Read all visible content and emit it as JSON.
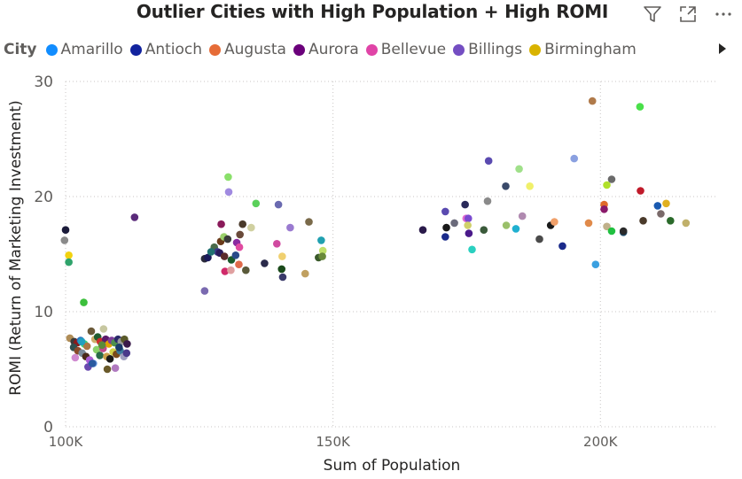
{
  "title": "Outlier Cities with High Population + High ROMI",
  "toolbar": {
    "filter_icon": "filter-icon",
    "focus_icon": "focus-mode-icon",
    "more_icon": "more-options-icon"
  },
  "legend": {
    "title": "City",
    "items": [
      {
        "label": "Amarillo",
        "color": "#118DFF"
      },
      {
        "label": "Antioch",
        "color": "#12239E"
      },
      {
        "label": "Augusta",
        "color": "#E66C37"
      },
      {
        "label": "Aurora",
        "color": "#6B007B"
      },
      {
        "label": "Bellevue",
        "color": "#E044A7"
      },
      {
        "label": "Billings",
        "color": "#744EC2"
      },
      {
        "label": "Birmingham",
        "color": "#D9B300"
      }
    ]
  },
  "chart_data": {
    "type": "scatter",
    "title": "Outlier Cities with High Population + High ROMI",
    "xlabel": "Sum of Population",
    "ylabel": "ROMI (Return of Marketing Investment)",
    "xlim": [
      100000,
      222000
    ],
    "ylim": [
      0,
      30
    ],
    "xticks": [
      {
        "value": 100000,
        "label": "100K"
      },
      {
        "value": 150000,
        "label": "150K"
      },
      {
        "value": 200000,
        "label": "200K"
      }
    ],
    "yticks": [
      {
        "value": 0,
        "label": "0"
      },
      {
        "value": 10,
        "label": "10"
      },
      {
        "value": 20,
        "label": "20"
      },
      {
        "value": 30,
        "label": "30"
      }
    ],
    "grid": "dotted",
    "legend_position": "top-left",
    "points": [
      {
        "x": 100000,
        "y": 17.1,
        "c": "#1b1b3a"
      },
      {
        "x": 99800,
        "y": 16.2,
        "c": "#8a8a8a"
      },
      {
        "x": 100600,
        "y": 14.9,
        "c": "#f2d20f"
      },
      {
        "x": 100600,
        "y": 14.3,
        "c": "#2fa36b"
      },
      {
        "x": 103400,
        "y": 10.8,
        "c": "#3cbf3c"
      },
      {
        "x": 112900,
        "y": 18.2,
        "c": "#5a2a7a"
      },
      {
        "x": 100800,
        "y": 7.7,
        "c": "#b08d57"
      },
      {
        "x": 101600,
        "y": 7.4,
        "c": "#3a3a3a"
      },
      {
        "x": 102200,
        "y": 7.3,
        "c": "#8b1a1a"
      },
      {
        "x": 102800,
        "y": 7.5,
        "c": "#2c6fbf"
      },
      {
        "x": 103500,
        "y": 7.2,
        "c": "#3cd07a"
      },
      {
        "x": 104000,
        "y": 7.0,
        "c": "#aa7744"
      },
      {
        "x": 104800,
        "y": 8.3,
        "c": "#6b5a3a"
      },
      {
        "x": 105500,
        "y": 7.6,
        "c": "#cfae6a"
      },
      {
        "x": 106000,
        "y": 7.8,
        "c": "#1f5c2f"
      },
      {
        "x": 106500,
        "y": 7.4,
        "c": "#d12b2b"
      },
      {
        "x": 107100,
        "y": 8.5,
        "c": "#c7c7a0"
      },
      {
        "x": 107500,
        "y": 7.6,
        "c": "#5a1a6a"
      },
      {
        "x": 108100,
        "y": 7.2,
        "c": "#e0a000"
      },
      {
        "x": 108600,
        "y": 7.5,
        "c": "#7d3d9a"
      },
      {
        "x": 109200,
        "y": 7.3,
        "c": "#4d8f4d"
      },
      {
        "x": 109800,
        "y": 7.6,
        "c": "#2a2a6a"
      },
      {
        "x": 110400,
        "y": 7.4,
        "c": "#9a9a9a"
      },
      {
        "x": 111000,
        "y": 7.6,
        "c": "#5a5a2a"
      },
      {
        "x": 111500,
        "y": 7.2,
        "c": "#3a1a4a"
      },
      {
        "x": 101500,
        "y": 6.9,
        "c": "#2f4f4f"
      },
      {
        "x": 102300,
        "y": 6.6,
        "c": "#8a4a2a"
      },
      {
        "x": 103100,
        "y": 6.4,
        "c": "#7a8a9a"
      },
      {
        "x": 103800,
        "y": 6.1,
        "c": "#4a2a1a"
      },
      {
        "x": 104500,
        "y": 5.8,
        "c": "#ab5cd6"
      },
      {
        "x": 105200,
        "y": 5.5,
        "c": "#6a9ae0"
      },
      {
        "x": 105800,
        "y": 6.7,
        "c": "#8ad06a"
      },
      {
        "x": 106400,
        "y": 6.2,
        "c": "#2a6a4a"
      },
      {
        "x": 107000,
        "y": 6.8,
        "c": "#c04a8a"
      },
      {
        "x": 107700,
        "y": 6.1,
        "c": "#caa04a"
      },
      {
        "x": 108300,
        "y": 5.9,
        "c": "#1a1a1a"
      },
      {
        "x": 108900,
        "y": 6.5,
        "c": "#d1d14a"
      },
      {
        "x": 109500,
        "y": 6.3,
        "c": "#7a4a1a"
      },
      {
        "x": 110200,
        "y": 6.6,
        "c": "#3a7a9a"
      },
      {
        "x": 110900,
        "y": 6.1,
        "c": "#a0a0c0"
      },
      {
        "x": 111400,
        "y": 6.4,
        "c": "#4a3a8a"
      },
      {
        "x": 101800,
        "y": 6.0,
        "c": "#d08ad0"
      },
      {
        "x": 104200,
        "y": 5.2,
        "c": "#6a4ab0"
      },
      {
        "x": 105000,
        "y": 5.5,
        "c": "#2a5aa0"
      },
      {
        "x": 107800,
        "y": 5.0,
        "c": "#6a5a2a"
      },
      {
        "x": 109300,
        "y": 5.1,
        "c": "#b07ac0"
      },
      {
        "x": 103000,
        "y": 7.4,
        "c": "#20a0c0"
      },
      {
        "x": 106800,
        "y": 7.1,
        "c": "#5a8a3a"
      },
      {
        "x": 110000,
        "y": 6.9,
        "c": "#1a3a6a"
      },
      {
        "x": 126000,
        "y": 14.6,
        "c": "#2a2a3a"
      },
      {
        "x": 126600,
        "y": 14.7,
        "c": "#1a1a5a"
      },
      {
        "x": 126000,
        "y": 11.8,
        "c": "#7a6ab0"
      },
      {
        "x": 127800,
        "y": 15.6,
        "c": "#4a6a4a"
      },
      {
        "x": 128400,
        "y": 15.2,
        "c": "#3a3a8a"
      },
      {
        "x": 129000,
        "y": 16.1,
        "c": "#6a3a1a"
      },
      {
        "x": 129100,
        "y": 17.6,
        "c": "#8a1a5a"
      },
      {
        "x": 129600,
        "y": 16.5,
        "c": "#9ad06a"
      },
      {
        "x": 130300,
        "y": 16.3,
        "c": "#3a3a3a"
      },
      {
        "x": 131000,
        "y": 14.5,
        "c": "#1a5a2a"
      },
      {
        "x": 130400,
        "y": 21.7,
        "c": "#8ae06a"
      },
      {
        "x": 130500,
        "y": 20.4,
        "c": "#a08ae0"
      },
      {
        "x": 132000,
        "y": 16.0,
        "c": "#8a2aa0"
      },
      {
        "x": 132600,
        "y": 16.7,
        "c": "#6a4a3a"
      },
      {
        "x": 133100,
        "y": 17.6,
        "c": "#4a3a2a"
      },
      {
        "x": 132500,
        "y": 15.6,
        "c": "#e04aa0"
      },
      {
        "x": 131800,
        "y": 14.9,
        "c": "#2a4a8a"
      },
      {
        "x": 132400,
        "y": 14.1,
        "c": "#e06a4a"
      },
      {
        "x": 133700,
        "y": 13.6,
        "c": "#5a5a3a"
      },
      {
        "x": 134700,
        "y": 17.3,
        "c": "#d0d0a0"
      },
      {
        "x": 135600,
        "y": 19.4,
        "c": "#5ad05a"
      },
      {
        "x": 137200,
        "y": 14.2,
        "c": "#2a2a4a"
      },
      {
        "x": 139800,
        "y": 19.3,
        "c": "#6a6ab0"
      },
      {
        "x": 139500,
        "y": 15.9,
        "c": "#d04aa0"
      },
      {
        "x": 140500,
        "y": 14.8,
        "c": "#f0d070"
      },
      {
        "x": 140400,
        "y": 13.7,
        "c": "#1a4a1a"
      },
      {
        "x": 140600,
        "y": 13.0,
        "c": "#3a3a6a"
      },
      {
        "x": 142000,
        "y": 17.3,
        "c": "#9a7ad0"
      },
      {
        "x": 144800,
        "y": 13.3,
        "c": "#c0a060"
      },
      {
        "x": 145500,
        "y": 17.8,
        "c": "#7a6a4a"
      },
      {
        "x": 147300,
        "y": 14.7,
        "c": "#3a5a2a"
      },
      {
        "x": 147800,
        "y": 16.2,
        "c": "#20a0b0"
      },
      {
        "x": 148100,
        "y": 15.3,
        "c": "#c0e06a"
      },
      {
        "x": 148000,
        "y": 14.8,
        "c": "#6a8a3a"
      },
      {
        "x": 129800,
        "y": 13.5,
        "c": "#d02a6a"
      },
      {
        "x": 130900,
        "y": 13.6,
        "c": "#e0a0a0"
      },
      {
        "x": 128800,
        "y": 15.1,
        "c": "#2a1a5a"
      },
      {
        "x": 129700,
        "y": 14.8,
        "c": "#5a2a2a"
      },
      {
        "x": 127200,
        "y": 15.2,
        "c": "#207070"
      },
      {
        "x": 166800,
        "y": 17.1,
        "c": "#2a1a4a"
      },
      {
        "x": 171000,
        "y": 18.7,
        "c": "#5a4ab0"
      },
      {
        "x": 171000,
        "y": 16.5,
        "c": "#1a2a8a"
      },
      {
        "x": 171200,
        "y": 17.3,
        "c": "#1a1a1a"
      },
      {
        "x": 172700,
        "y": 17.7,
        "c": "#6a6a7a"
      },
      {
        "x": 174700,
        "y": 19.3,
        "c": "#2a2a5a"
      },
      {
        "x": 174900,
        "y": 18.1,
        "c": "#e06ad0"
      },
      {
        "x": 175300,
        "y": 18.1,
        "c": "#7a4ad0"
      },
      {
        "x": 175200,
        "y": 17.5,
        "c": "#d0d06a"
      },
      {
        "x": 175400,
        "y": 16.8,
        "c": "#4a1a8a"
      },
      {
        "x": 176000,
        "y": 15.4,
        "c": "#2ad0c0"
      },
      {
        "x": 178200,
        "y": 17.1,
        "c": "#3a5a3a"
      },
      {
        "x": 178900,
        "y": 19.6,
        "c": "#8a8a8a"
      },
      {
        "x": 179100,
        "y": 23.1,
        "c": "#5a4ab0"
      },
      {
        "x": 182300,
        "y": 20.9,
        "c": "#3a4a6a"
      },
      {
        "x": 182400,
        "y": 17.5,
        "c": "#9ac06a"
      },
      {
        "x": 184200,
        "y": 17.2,
        "c": "#20b0d0"
      },
      {
        "x": 184800,
        "y": 22.4,
        "c": "#a0e08a"
      },
      {
        "x": 185400,
        "y": 18.3,
        "c": "#b08ab0"
      },
      {
        "x": 186800,
        "y": 20.9,
        "c": "#f0f06a"
      },
      {
        "x": 188600,
        "y": 16.3,
        "c": "#4a4a4a"
      },
      {
        "x": 190700,
        "y": 17.5,
        "c": "#1a1a1a"
      },
      {
        "x": 191400,
        "y": 17.8,
        "c": "#f0a06a"
      },
      {
        "x": 192900,
        "y": 15.7,
        "c": "#1a2a8a"
      },
      {
        "x": 195100,
        "y": 23.3,
        "c": "#8aa0e0"
      },
      {
        "x": 197800,
        "y": 17.7,
        "c": "#e08a4a"
      },
      {
        "x": 198500,
        "y": 28.3,
        "c": "#b07a4a"
      },
      {
        "x": 199100,
        "y": 14.1,
        "c": "#3aa0e0"
      },
      {
        "x": 200700,
        "y": 19.3,
        "c": "#e06a2a"
      },
      {
        "x": 200700,
        "y": 18.9,
        "c": "#8a1a6a"
      },
      {
        "x": 201200,
        "y": 21.0,
        "c": "#b0e02a"
      },
      {
        "x": 201200,
        "y": 17.4,
        "c": "#c0b08a"
      },
      {
        "x": 202100,
        "y": 21.5,
        "c": "#6a6a6a"
      },
      {
        "x": 202100,
        "y": 17.0,
        "c": "#20c040"
      },
      {
        "x": 204300,
        "y": 16.9,
        "c": "#1a4a6a"
      },
      {
        "x": 204300,
        "y": 17.0,
        "c": "#2a2a2a"
      },
      {
        "x": 207400,
        "y": 27.8,
        "c": "#4ae04a"
      },
      {
        "x": 207500,
        "y": 20.5,
        "c": "#c01a2a"
      },
      {
        "x": 208000,
        "y": 17.9,
        "c": "#4a3a2a"
      },
      {
        "x": 210700,
        "y": 19.2,
        "c": "#1a5ab0"
      },
      {
        "x": 211300,
        "y": 18.5,
        "c": "#7a6a6a"
      },
      {
        "x": 212300,
        "y": 19.4,
        "c": "#e0b020"
      },
      {
        "x": 213100,
        "y": 17.9,
        "c": "#2a6a2a"
      },
      {
        "x": 216000,
        "y": 17.7,
        "c": "#c0b06a"
      }
    ]
  }
}
